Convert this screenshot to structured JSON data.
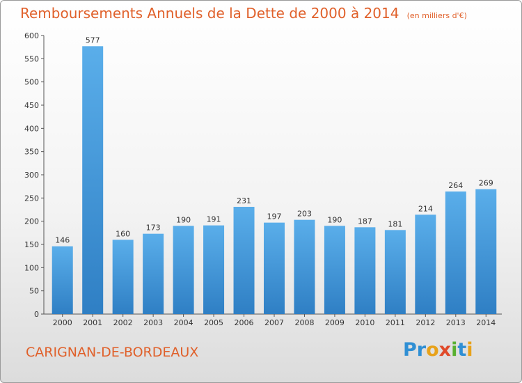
{
  "chart_data": {
    "type": "bar",
    "title": "Remboursements Annuels de la Dette de 2000 à 2014",
    "subtitle": "(en milliers d'€)",
    "categories": [
      "2000",
      "2001",
      "2002",
      "2003",
      "2004",
      "2005",
      "2006",
      "2007",
      "2008",
      "2009",
      "2010",
      "2011",
      "2012",
      "2013",
      "2014"
    ],
    "values": [
      146,
      577,
      160,
      173,
      190,
      191,
      231,
      197,
      203,
      190,
      187,
      181,
      214,
      264,
      269
    ],
    "ylim": [
      0,
      600
    ],
    "yticks": [
      0,
      50,
      100,
      150,
      200,
      250,
      300,
      350,
      400,
      450,
      500,
      550,
      600
    ],
    "grid": false,
    "bar_color": "#4a9fe0"
  },
  "footer": {
    "city": "CARIGNAN-DE-BORDEAUX",
    "logo": [
      "Pr",
      "o",
      "x",
      "i",
      "t",
      "i"
    ]
  }
}
